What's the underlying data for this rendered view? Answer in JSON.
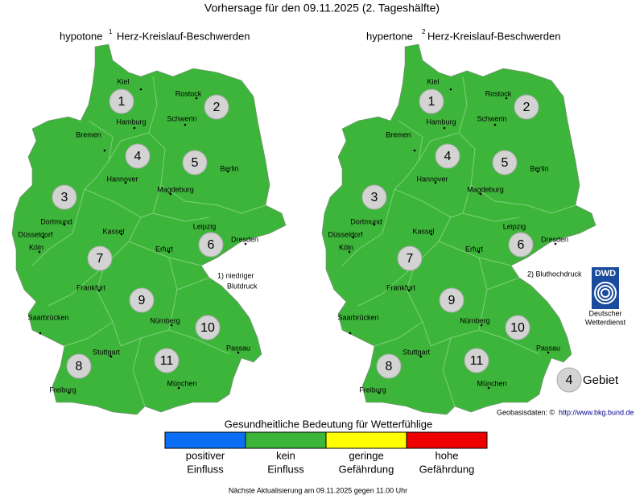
{
  "title": "Vorhersage für den 09.11.2025 (2. Tageshälfte)",
  "maps": [
    {
      "name": "hypotone",
      "footnote_mark": "1",
      "subtitle": "Herz-Kreislauf-Beschwerden",
      "note_lines": [
        "1) niedriger",
        "Blutdruck"
      ],
      "color": "#3db53a"
    },
    {
      "name": "hypertone",
      "footnote_mark": "2",
      "subtitle": "Herz-Kreislauf-Beschwerden",
      "note_lines": [
        "2) Bluthochdruck"
      ],
      "color": "#3db53a"
    }
  ],
  "cities": [
    "Kiel",
    "Rostock",
    "Hamburg",
    "Schwerin",
    "Bremen",
    "Hannover",
    "Berlin",
    "Magdeburg",
    "Dortmund",
    "Düsseldorf",
    "Köln",
    "Kassel",
    "Leipzig",
    "Dresden",
    "Erfurt",
    "Frankfurt",
    "Saarbrücken",
    "Nürnberg",
    "Passau",
    "Stuttgart",
    "München",
    "Freiburg"
  ],
  "regions": [
    1,
    2,
    3,
    4,
    5,
    6,
    7,
    8,
    9,
    10,
    11
  ],
  "dwd": {
    "abbr": "DWD",
    "name_lines": [
      "Deutscher",
      "Wetterdienst"
    ]
  },
  "area_key": {
    "number": 4,
    "label": "Gebiet"
  },
  "source": {
    "label": "Geobasisdaten: ©",
    "link": "http://www.bkg.bund.de"
  },
  "legend": {
    "title": "Gesundheitliche Bedeutung für Wetterfühlige",
    "items": [
      {
        "color": "#0a6ff5",
        "lines": [
          "positiver",
          "Einfluss"
        ]
      },
      {
        "color": "#3db53a",
        "lines": [
          "kein",
          "Einfluss"
        ]
      },
      {
        "color": "#ffff00",
        "lines": [
          "geringe",
          "Gefährdung"
        ]
      },
      {
        "color": "#ee0000",
        "lines": [
          "hohe",
          "Gefährdung"
        ]
      }
    ]
  },
  "footer": "Nächste Aktualisierung am 09.11.2025 gegen 11.00 Uhr"
}
